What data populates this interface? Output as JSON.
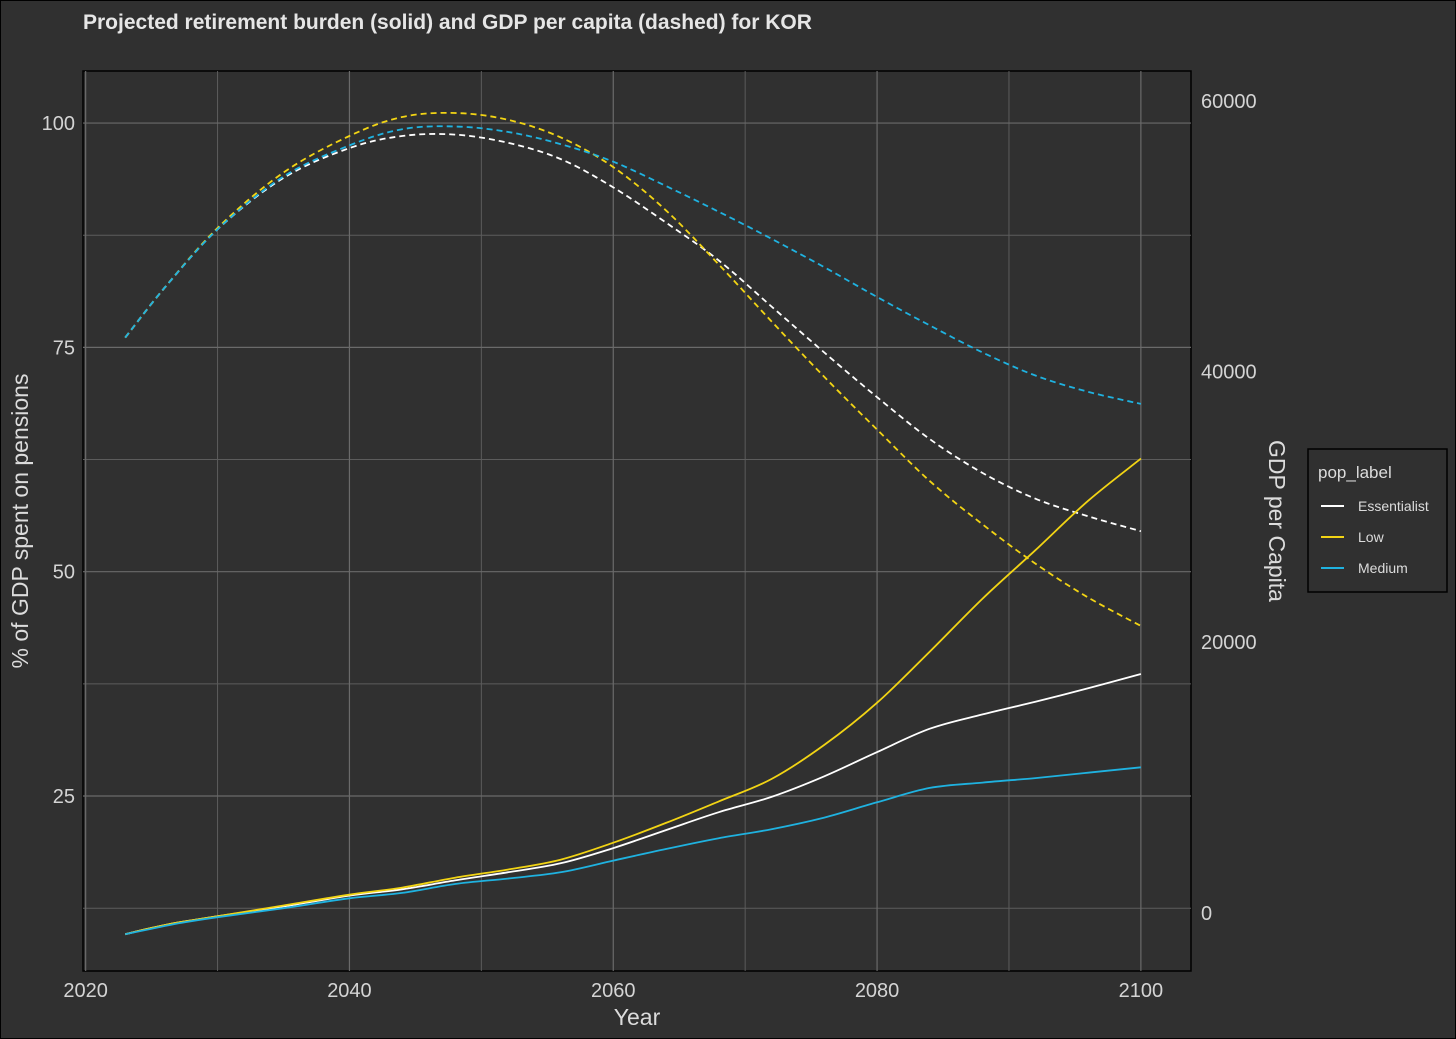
{
  "chart_data": {
    "type": "line",
    "title": "Projected retirement burden (solid) and GDP per capita (dashed) for KOR",
    "xlabel": "Year",
    "ylabel": "% of GDP spent on pensions",
    "y2label": "GDP per Capita",
    "xlim": [
      2019.8,
      2103.8
    ],
    "ylim": [
      5.5,
      105.8
    ],
    "y2lim": [
      -4300,
      62200
    ],
    "x_ticks": [
      "2020",
      "2040",
      "2060",
      "2080",
      "2100"
    ],
    "x_tick_values": [
      2020,
      2040,
      2060,
      2080,
      2100
    ],
    "y_ticks": [
      "25",
      "50",
      "75",
      "100"
    ],
    "y_tick_values": [
      25,
      50,
      75,
      100
    ],
    "y2_ticks": [
      "0",
      "20000",
      "40000",
      "60000"
    ],
    "y2_tick_values": [
      0,
      20000,
      40000,
      60000
    ],
    "legend": {
      "title": "pop_label",
      "entries": [
        {
          "label": "Essentialist",
          "color": "#ffffff"
        },
        {
          "label": "Low",
          "color": "#f2d414"
        },
        {
          "label": "Medium",
          "color": "#1fb2e0"
        }
      ]
    },
    "series": [
      {
        "name": "Essentialist",
        "measure": "% of GDP spent on pensions",
        "axis": "left",
        "style": "solid",
        "color": "#ffffff",
        "x": [
          2023,
          2025,
          2027,
          2030,
          2035,
          2040,
          2044,
          2048,
          2052,
          2056,
          2060,
          2064,
          2068,
          2072,
          2076,
          2080,
          2084,
          2088,
          2092,
          2096,
          2100
        ],
        "values": [
          9.6,
          10.3,
          10.9,
          11.6,
          12.7,
          13.9,
          14.6,
          15.6,
          16.5,
          17.5,
          19.2,
          21.2,
          23.2,
          24.9,
          27.2,
          29.9,
          32.5,
          34.1,
          35.5,
          37.0,
          38.6
        ]
      },
      {
        "name": "Low",
        "measure": "% of GDP spent on pensions",
        "axis": "left",
        "style": "solid",
        "color": "#f2d414",
        "x": [
          2023,
          2025,
          2027,
          2030,
          2035,
          2040,
          2044,
          2048,
          2052,
          2056,
          2060,
          2064,
          2068,
          2072,
          2076,
          2080,
          2084,
          2088,
          2092,
          2096,
          2100
        ],
        "values": [
          9.6,
          10.3,
          10.9,
          11.6,
          12.8,
          14.0,
          14.8,
          15.9,
          16.8,
          17.9,
          19.8,
          22.0,
          24.4,
          26.9,
          30.7,
          35.4,
          41.1,
          47.0,
          52.4,
          57.9,
          62.6
        ]
      },
      {
        "name": "Medium",
        "measure": "% of GDP spent on pensions",
        "axis": "left",
        "style": "solid",
        "color": "#1fb2e0",
        "x": [
          2023,
          2025,
          2027,
          2030,
          2035,
          2040,
          2044,
          2048,
          2052,
          2056,
          2060,
          2064,
          2068,
          2072,
          2076,
          2080,
          2084,
          2088,
          2092,
          2096,
          2100
        ],
        "values": [
          9.6,
          10.2,
          10.8,
          11.5,
          12.5,
          13.6,
          14.2,
          15.2,
          15.8,
          16.5,
          17.8,
          19.1,
          20.3,
          21.3,
          22.6,
          24.3,
          25.9,
          26.5,
          27.0,
          27.6,
          28.2
        ]
      },
      {
        "name": "Essentialist",
        "measure": "GDP per Capita",
        "axis": "right",
        "style": "dashed",
        "color": "#ffffff",
        "x": [
          2023,
          2026,
          2030,
          2035,
          2040,
          2044,
          2048,
          2052,
          2056,
          2060,
          2064,
          2068,
          2072,
          2076,
          2080,
          2084,
          2088,
          2092,
          2096,
          2100
        ],
        "values": [
          42500,
          46200,
          50500,
          54300,
          56500,
          57400,
          57500,
          56900,
          55700,
          53600,
          51000,
          48200,
          44800,
          41400,
          38100,
          35000,
          32500,
          30600,
          29300,
          28200
        ]
      },
      {
        "name": "Low",
        "measure": "GDP per Capita",
        "axis": "right",
        "style": "dashed",
        "color": "#f2d414",
        "x": [
          2023,
          2026,
          2030,
          2035,
          2040,
          2044,
          2048,
          2052,
          2056,
          2060,
          2064,
          2068,
          2072,
          2076,
          2080,
          2084,
          2088,
          2092,
          2096,
          2100
        ],
        "values": [
          42500,
          46200,
          50600,
          54700,
          57400,
          58800,
          59100,
          58600,
          57300,
          55100,
          51900,
          47900,
          43700,
          39600,
          35700,
          31900,
          28700,
          25800,
          23300,
          21200
        ]
      },
      {
        "name": "Medium",
        "measure": "GDP per Capita",
        "axis": "right",
        "style": "dashed",
        "color": "#1fb2e0",
        "x": [
          2023,
          2026,
          2030,
          2035,
          2040,
          2044,
          2048,
          2052,
          2056,
          2060,
          2064,
          2068,
          2072,
          2076,
          2080,
          2084,
          2088,
          2092,
          2096,
          2100
        ],
        "values": [
          42500,
          46200,
          50500,
          54400,
          56700,
          57900,
          58100,
          57700,
          56800,
          55500,
          53700,
          51800,
          49800,
          47700,
          45500,
          43400,
          41400,
          39700,
          38500,
          37600
        ]
      }
    ]
  }
}
